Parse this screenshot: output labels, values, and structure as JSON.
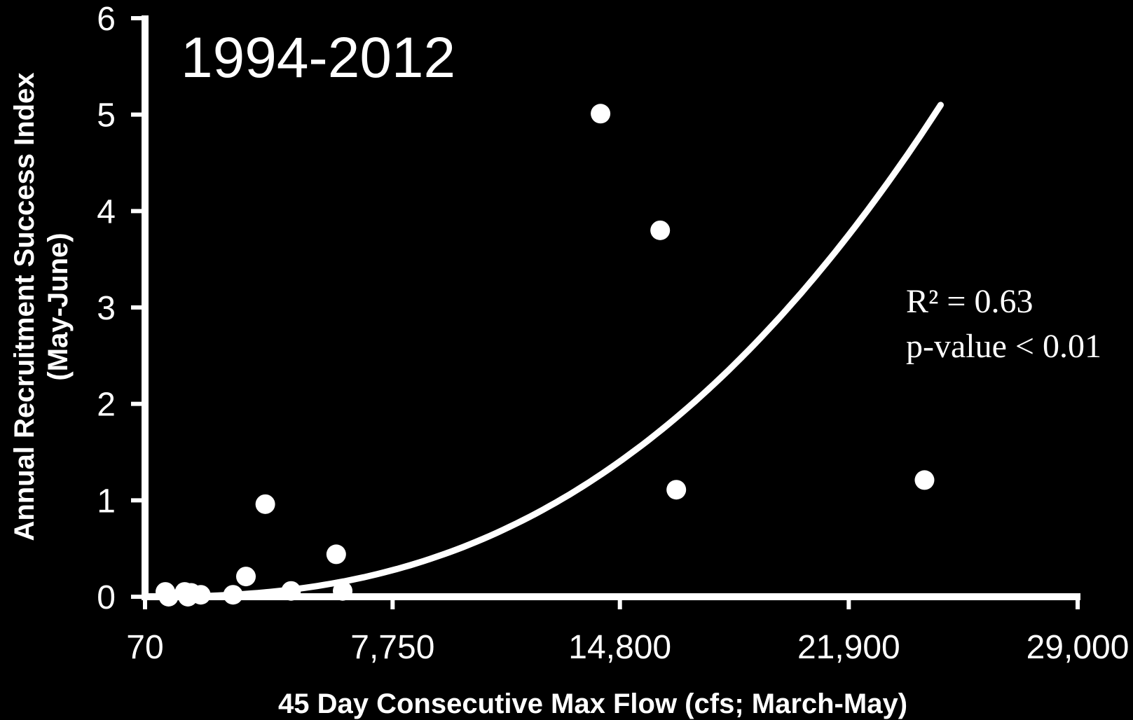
{
  "chart_data": {
    "type": "scatter",
    "title": "1994-2012",
    "xlabel": "45 Day Consecutive Max Flow (cfs; March-May)",
    "ylabel_line1": "Annual Recruitment Success Index",
    "ylabel_line2": "(May-June)",
    "x_tick_labels": [
      "70",
      "7,750",
      "14,800",
      "21,900",
      "29,000"
    ],
    "x_tick_values": [
      70,
      7750,
      14800,
      21900,
      29000
    ],
    "y_tick_labels": [
      "0",
      "1",
      "2",
      "3",
      "4",
      "5",
      "6"
    ],
    "y_tick_values": [
      0,
      1,
      2,
      3,
      4,
      5,
      6
    ],
    "xlim": [
      70,
      29000
    ],
    "ylim": [
      0,
      6
    ],
    "grid": false,
    "legend": false,
    "points": [
      {
        "x": 700,
        "y": 0.05
      },
      {
        "x": 800,
        "y": 0.0
      },
      {
        "x": 1300,
        "y": 0.05
      },
      {
        "x": 1400,
        "y": 0.0
      },
      {
        "x": 1500,
        "y": 0.04
      },
      {
        "x": 1800,
        "y": 0.02
      },
      {
        "x": 2800,
        "y": 0.02
      },
      {
        "x": 3200,
        "y": 0.21
      },
      {
        "x": 3800,
        "y": 0.96
      },
      {
        "x": 4600,
        "y": 0.06
      },
      {
        "x": 6000,
        "y": 0.44
      },
      {
        "x": 6200,
        "y": 0.06
      },
      {
        "x": 14200,
        "y": 5.01
      },
      {
        "x": 16050,
        "y": 3.8
      },
      {
        "x": 16550,
        "y": 1.11
      },
      {
        "x": 24250,
        "y": 1.21
      }
    ],
    "trendline": {
      "type": "power",
      "exponent": 2.5,
      "x_start": 70,
      "x_end": 24750,
      "y_at_end": 5.1
    },
    "annotations": [
      "R² = 0.63",
      "p-value < 0.01"
    ],
    "colors": {
      "background": "#000000",
      "foreground": "#ffffff"
    }
  }
}
